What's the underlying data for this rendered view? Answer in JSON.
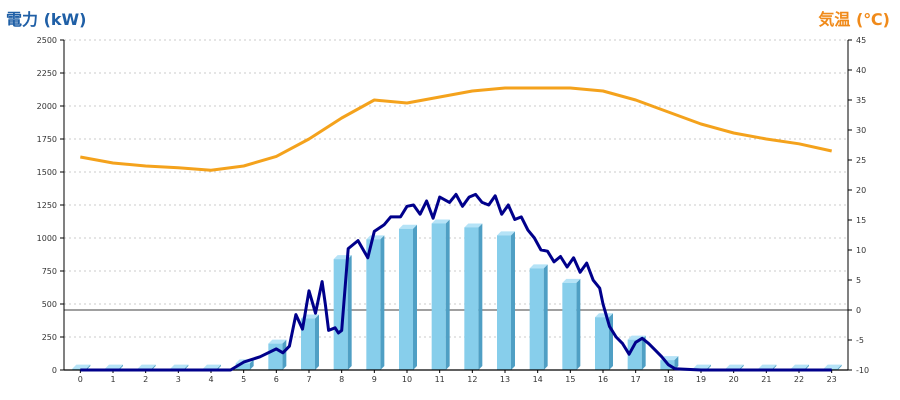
{
  "chart_data": {
    "type": "bar",
    "title_left": "電力 (kW)",
    "title_right": "気温 (℃)",
    "left_axis": {
      "ticks": [
        0,
        250,
        500,
        750,
        1000,
        1250,
        1500,
        1750,
        2000,
        2250,
        2500
      ],
      "min": 0,
      "max": 2500
    },
    "right_axis": {
      "ticks": [
        -10,
        -5,
        0,
        5,
        10,
        15,
        20,
        25,
        30,
        35,
        40,
        45
      ],
      "min": -10,
      "max": 45
    },
    "categories": [
      "0",
      "1",
      "2",
      "3",
      "4",
      "5",
      "6",
      "7",
      "8",
      "9",
      "10",
      "11",
      "12",
      "13",
      "14",
      "15",
      "16",
      "17",
      "18",
      "19",
      "20",
      "21",
      "22",
      "23"
    ],
    "grid": true,
    "series": [
      {
        "type": "bar",
        "axis": "left",
        "color": "#87ceeb",
        "values": [
          10,
          10,
          10,
          10,
          10,
          50,
          200,
          390,
          840,
          990,
          1070,
          1110,
          1080,
          1020,
          770,
          660,
          400,
          230,
          75,
          10,
          10,
          10,
          10,
          10
        ]
      },
      {
        "type": "line",
        "axis": "left",
        "color": "#00008b",
        "points": [
          [
            0,
            0
          ],
          [
            1,
            0
          ],
          [
            2,
            0
          ],
          [
            3,
            0
          ],
          [
            4,
            0
          ],
          [
            4.6,
            0
          ],
          [
            5,
            60
          ],
          [
            5.5,
            100
          ],
          [
            6,
            160
          ],
          [
            6.2,
            130
          ],
          [
            6.4,
            180
          ],
          [
            6.6,
            420
          ],
          [
            6.8,
            310
          ],
          [
            7.0,
            600
          ],
          [
            7.2,
            430
          ],
          [
            7.4,
            670
          ],
          [
            7.5,
            500
          ],
          [
            7.6,
            300
          ],
          [
            7.8,
            320
          ],
          [
            7.9,
            280
          ],
          [
            8.0,
            300
          ],
          [
            8.2,
            920
          ],
          [
            8.5,
            980
          ],
          [
            8.8,
            850
          ],
          [
            9.0,
            1050
          ],
          [
            9.3,
            1100
          ],
          [
            9.5,
            1160
          ],
          [
            9.8,
            1160
          ],
          [
            10.0,
            1240
          ],
          [
            10.2,
            1250
          ],
          [
            10.4,
            1180
          ],
          [
            10.6,
            1280
          ],
          [
            10.8,
            1150
          ],
          [
            11.0,
            1310
          ],
          [
            11.3,
            1270
          ],
          [
            11.5,
            1330
          ],
          [
            11.7,
            1240
          ],
          [
            11.9,
            1310
          ],
          [
            12.1,
            1330
          ],
          [
            12.3,
            1270
          ],
          [
            12.5,
            1250
          ],
          [
            12.7,
            1320
          ],
          [
            12.9,
            1180
          ],
          [
            13.1,
            1250
          ],
          [
            13.3,
            1140
          ],
          [
            13.5,
            1160
          ],
          [
            13.7,
            1060
          ],
          [
            13.9,
            1000
          ],
          [
            14.1,
            910
          ],
          [
            14.3,
            900
          ],
          [
            14.5,
            820
          ],
          [
            14.7,
            860
          ],
          [
            14.9,
            780
          ],
          [
            15.1,
            850
          ],
          [
            15.3,
            740
          ],
          [
            15.5,
            810
          ],
          [
            15.7,
            680
          ],
          [
            15.9,
            620
          ],
          [
            16.0,
            500
          ],
          [
            16.2,
            330
          ],
          [
            16.4,
            250
          ],
          [
            16.6,
            200
          ],
          [
            16.8,
            120
          ],
          [
            17.0,
            210
          ],
          [
            17.2,
            240
          ],
          [
            17.4,
            200
          ],
          [
            17.6,
            150
          ],
          [
            17.8,
            100
          ],
          [
            18.0,
            40
          ],
          [
            18.2,
            10
          ],
          [
            19,
            0
          ],
          [
            20,
            0
          ],
          [
            21,
            0
          ],
          [
            22,
            0
          ],
          [
            23,
            0
          ]
        ]
      },
      {
        "type": "line",
        "axis": "right",
        "color": "#f4a21c",
        "points": [
          [
            0,
            25.5
          ],
          [
            1,
            24.5
          ],
          [
            2,
            24
          ],
          [
            3,
            23.7
          ],
          [
            4,
            23.3
          ],
          [
            5,
            24
          ],
          [
            6,
            25.6
          ],
          [
            7,
            28.5
          ],
          [
            8,
            32
          ],
          [
            9,
            35
          ],
          [
            10,
            34.5
          ],
          [
            11,
            35.5
          ],
          [
            12,
            36.5
          ],
          [
            13,
            37
          ],
          [
            14,
            37
          ],
          [
            15,
            37
          ],
          [
            16,
            36.5
          ],
          [
            17,
            35
          ],
          [
            18,
            33
          ],
          [
            19,
            31
          ],
          [
            20,
            29.5
          ],
          [
            21,
            28.5
          ],
          [
            22,
            27.7
          ],
          [
            23,
            26.5
          ]
        ]
      }
    ]
  }
}
